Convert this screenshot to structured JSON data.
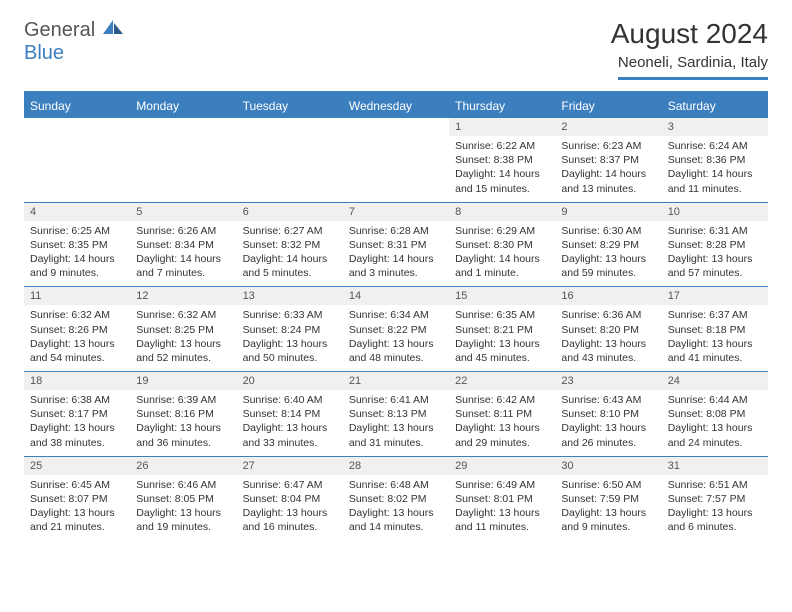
{
  "logo": {
    "text_general": "General",
    "text_blue": "Blue"
  },
  "title": "August 2024",
  "location": "Neoneli, Sardinia, Italy",
  "colors": {
    "accent": "#3c7fbf",
    "header_bg": "#3c7fbf",
    "header_text": "#ffffff",
    "daynum_bg": "#f0f0f0",
    "text": "#333333",
    "page_bg": "#ffffff"
  },
  "weekdays": [
    "Sunday",
    "Monday",
    "Tuesday",
    "Wednesday",
    "Thursday",
    "Friday",
    "Saturday"
  ],
  "grid": [
    [
      {
        "n": "",
        "sr": "",
        "ss": "",
        "dl": ""
      },
      {
        "n": "",
        "sr": "",
        "ss": "",
        "dl": ""
      },
      {
        "n": "",
        "sr": "",
        "ss": "",
        "dl": ""
      },
      {
        "n": "",
        "sr": "",
        "ss": "",
        "dl": ""
      },
      {
        "n": "1",
        "sr": "Sunrise: 6:22 AM",
        "ss": "Sunset: 8:38 PM",
        "dl": "Daylight: 14 hours and 15 minutes."
      },
      {
        "n": "2",
        "sr": "Sunrise: 6:23 AM",
        "ss": "Sunset: 8:37 PM",
        "dl": "Daylight: 14 hours and 13 minutes."
      },
      {
        "n": "3",
        "sr": "Sunrise: 6:24 AM",
        "ss": "Sunset: 8:36 PM",
        "dl": "Daylight: 14 hours and 11 minutes."
      }
    ],
    [
      {
        "n": "4",
        "sr": "Sunrise: 6:25 AM",
        "ss": "Sunset: 8:35 PM",
        "dl": "Daylight: 14 hours and 9 minutes."
      },
      {
        "n": "5",
        "sr": "Sunrise: 6:26 AM",
        "ss": "Sunset: 8:34 PM",
        "dl": "Daylight: 14 hours and 7 minutes."
      },
      {
        "n": "6",
        "sr": "Sunrise: 6:27 AM",
        "ss": "Sunset: 8:32 PM",
        "dl": "Daylight: 14 hours and 5 minutes."
      },
      {
        "n": "7",
        "sr": "Sunrise: 6:28 AM",
        "ss": "Sunset: 8:31 PM",
        "dl": "Daylight: 14 hours and 3 minutes."
      },
      {
        "n": "8",
        "sr": "Sunrise: 6:29 AM",
        "ss": "Sunset: 8:30 PM",
        "dl": "Daylight: 14 hours and 1 minute."
      },
      {
        "n": "9",
        "sr": "Sunrise: 6:30 AM",
        "ss": "Sunset: 8:29 PM",
        "dl": "Daylight: 13 hours and 59 minutes."
      },
      {
        "n": "10",
        "sr": "Sunrise: 6:31 AM",
        "ss": "Sunset: 8:28 PM",
        "dl": "Daylight: 13 hours and 57 minutes."
      }
    ],
    [
      {
        "n": "11",
        "sr": "Sunrise: 6:32 AM",
        "ss": "Sunset: 8:26 PM",
        "dl": "Daylight: 13 hours and 54 minutes."
      },
      {
        "n": "12",
        "sr": "Sunrise: 6:32 AM",
        "ss": "Sunset: 8:25 PM",
        "dl": "Daylight: 13 hours and 52 minutes."
      },
      {
        "n": "13",
        "sr": "Sunrise: 6:33 AM",
        "ss": "Sunset: 8:24 PM",
        "dl": "Daylight: 13 hours and 50 minutes."
      },
      {
        "n": "14",
        "sr": "Sunrise: 6:34 AM",
        "ss": "Sunset: 8:22 PM",
        "dl": "Daylight: 13 hours and 48 minutes."
      },
      {
        "n": "15",
        "sr": "Sunrise: 6:35 AM",
        "ss": "Sunset: 8:21 PM",
        "dl": "Daylight: 13 hours and 45 minutes."
      },
      {
        "n": "16",
        "sr": "Sunrise: 6:36 AM",
        "ss": "Sunset: 8:20 PM",
        "dl": "Daylight: 13 hours and 43 minutes."
      },
      {
        "n": "17",
        "sr": "Sunrise: 6:37 AM",
        "ss": "Sunset: 8:18 PM",
        "dl": "Daylight: 13 hours and 41 minutes."
      }
    ],
    [
      {
        "n": "18",
        "sr": "Sunrise: 6:38 AM",
        "ss": "Sunset: 8:17 PM",
        "dl": "Daylight: 13 hours and 38 minutes."
      },
      {
        "n": "19",
        "sr": "Sunrise: 6:39 AM",
        "ss": "Sunset: 8:16 PM",
        "dl": "Daylight: 13 hours and 36 minutes."
      },
      {
        "n": "20",
        "sr": "Sunrise: 6:40 AM",
        "ss": "Sunset: 8:14 PM",
        "dl": "Daylight: 13 hours and 33 minutes."
      },
      {
        "n": "21",
        "sr": "Sunrise: 6:41 AM",
        "ss": "Sunset: 8:13 PM",
        "dl": "Daylight: 13 hours and 31 minutes."
      },
      {
        "n": "22",
        "sr": "Sunrise: 6:42 AM",
        "ss": "Sunset: 8:11 PM",
        "dl": "Daylight: 13 hours and 29 minutes."
      },
      {
        "n": "23",
        "sr": "Sunrise: 6:43 AM",
        "ss": "Sunset: 8:10 PM",
        "dl": "Daylight: 13 hours and 26 minutes."
      },
      {
        "n": "24",
        "sr": "Sunrise: 6:44 AM",
        "ss": "Sunset: 8:08 PM",
        "dl": "Daylight: 13 hours and 24 minutes."
      }
    ],
    [
      {
        "n": "25",
        "sr": "Sunrise: 6:45 AM",
        "ss": "Sunset: 8:07 PM",
        "dl": "Daylight: 13 hours and 21 minutes."
      },
      {
        "n": "26",
        "sr": "Sunrise: 6:46 AM",
        "ss": "Sunset: 8:05 PM",
        "dl": "Daylight: 13 hours and 19 minutes."
      },
      {
        "n": "27",
        "sr": "Sunrise: 6:47 AM",
        "ss": "Sunset: 8:04 PM",
        "dl": "Daylight: 13 hours and 16 minutes."
      },
      {
        "n": "28",
        "sr": "Sunrise: 6:48 AM",
        "ss": "Sunset: 8:02 PM",
        "dl": "Daylight: 13 hours and 14 minutes."
      },
      {
        "n": "29",
        "sr": "Sunrise: 6:49 AM",
        "ss": "Sunset: 8:01 PM",
        "dl": "Daylight: 13 hours and 11 minutes."
      },
      {
        "n": "30",
        "sr": "Sunrise: 6:50 AM",
        "ss": "Sunset: 7:59 PM",
        "dl": "Daylight: 13 hours and 9 minutes."
      },
      {
        "n": "31",
        "sr": "Sunrise: 6:51 AM",
        "ss": "Sunset: 7:57 PM",
        "dl": "Daylight: 13 hours and 6 minutes."
      }
    ]
  ]
}
